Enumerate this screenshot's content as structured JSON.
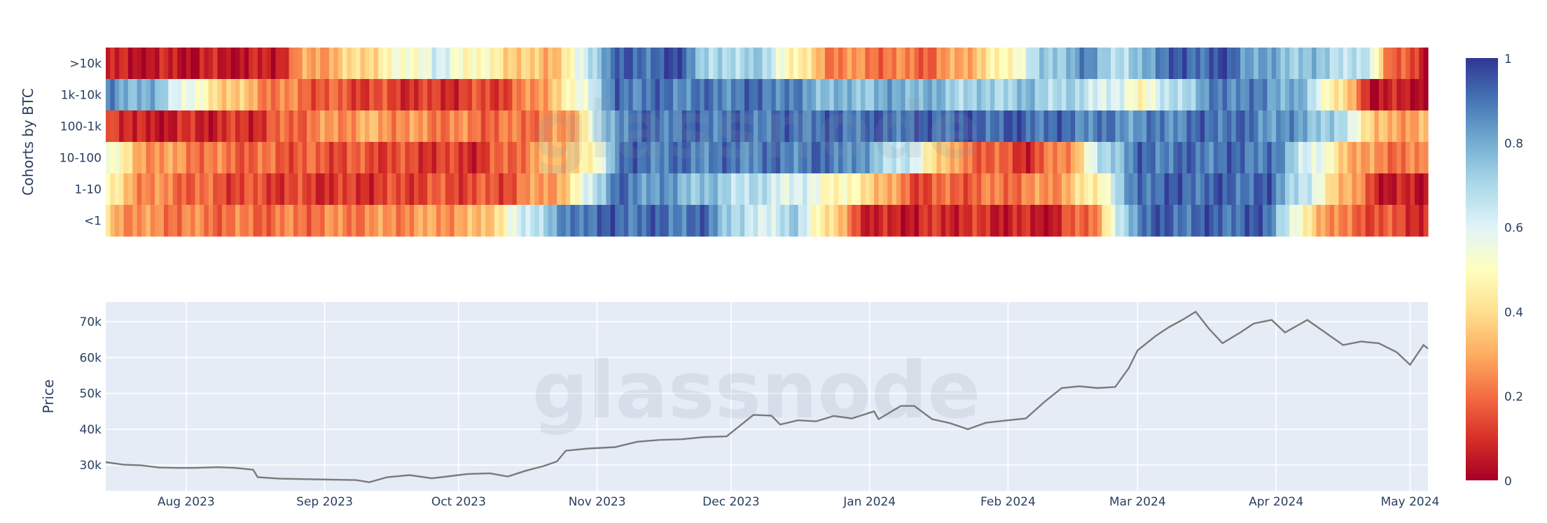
{
  "chart_data": [
    {
      "type": "heatmap",
      "ylabel": "Cohorts by BTC",
      "y_categories": [
        ">10k",
        "1k-10k",
        "100-1k",
        "10-100",
        "1-10",
        "<1"
      ],
      "x_range": [
        "2023-07-14",
        "2024-05-05"
      ],
      "colorscale": {
        "name": "RdYlBu",
        "min": 0,
        "max": 1,
        "ticks": [
          {
            "value": 0,
            "label": "0"
          },
          {
            "value": 0.2,
            "label": "0.2"
          },
          {
            "value": 0.4,
            "label": "0.4"
          },
          {
            "value": 0.6,
            "label": "0.6"
          },
          {
            "value": 0.8,
            "label": "0.8"
          },
          {
            "value": 1,
            "label": "1"
          }
        ],
        "stops": [
          "#a50026",
          "#d73027",
          "#f46d43",
          "#fdae61",
          "#fee090",
          "#ffffbf",
          "#e0f3f8",
          "#abd9e9",
          "#74add1",
          "#4575b4",
          "#313695"
        ]
      },
      "segments": [
        {
          "cohort": ">10k",
          "points": [
            [
              "2023-07-14",
              0.05
            ],
            [
              "2023-08-20",
              0.05
            ],
            [
              "2023-08-26",
              0.25
            ],
            [
              "2023-09-10",
              0.4
            ],
            [
              "2023-09-25",
              0.6
            ],
            [
              "2023-10-08",
              0.45
            ],
            [
              "2023-10-20",
              0.3
            ],
            [
              "2023-10-28",
              0.55
            ],
            [
              "2023-11-03",
              0.9
            ],
            [
              "2023-11-20",
              0.95
            ],
            [
              "2023-11-26",
              0.65
            ],
            [
              "2023-12-05",
              0.75
            ],
            [
              "2023-12-14",
              0.5
            ],
            [
              "2023-12-22",
              0.25
            ],
            [
              "2024-01-15",
              0.2
            ],
            [
              "2024-01-30",
              0.45
            ],
            [
              "2024-02-08",
              0.7
            ],
            [
              "2024-02-18",
              0.85
            ],
            [
              "2024-02-27",
              0.65
            ],
            [
              "2024-03-05",
              0.9
            ],
            [
              "2024-03-20",
              0.95
            ],
            [
              "2024-03-28",
              0.8
            ],
            [
              "2024-04-15",
              0.7
            ],
            [
              "2024-04-22",
              0.6
            ],
            [
              "2024-04-26",
              0.2
            ],
            [
              "2024-05-05",
              0.05
            ]
          ]
        },
        {
          "cohort": "1k-10k",
          "points": [
            [
              "2023-07-14",
              0.85
            ],
            [
              "2023-07-25",
              0.75
            ],
            [
              "2023-08-05",
              0.45
            ],
            [
              "2023-08-18",
              0.25
            ],
            [
              "2023-09-05",
              0.15
            ],
            [
              "2023-09-25",
              0.1
            ],
            [
              "2023-10-12",
              0.15
            ],
            [
              "2023-10-24",
              0.4
            ],
            [
              "2023-10-29",
              0.6
            ],
            [
              "2023-11-05",
              0.9
            ],
            [
              "2023-11-25",
              0.88
            ],
            [
              "2023-12-10",
              0.9
            ],
            [
              "2023-12-25",
              0.75
            ],
            [
              "2024-01-10",
              0.8
            ],
            [
              "2024-01-25",
              0.7
            ],
            [
              "2024-02-05",
              0.75
            ],
            [
              "2024-02-20",
              0.65
            ],
            [
              "2024-03-01",
              0.5
            ],
            [
              "2024-03-10",
              0.7
            ],
            [
              "2024-03-20",
              0.9
            ],
            [
              "2024-04-05",
              0.8
            ],
            [
              "2024-04-15",
              0.4
            ],
            [
              "2024-04-22",
              0.05
            ],
            [
              "2024-05-05",
              0.05
            ]
          ]
        },
        {
          "cohort": "100-1k",
          "points": [
            [
              "2023-07-14",
              0.2
            ],
            [
              "2023-07-20",
              0.05
            ],
            [
              "2023-08-15",
              0.1
            ],
            [
              "2023-08-25",
              0.2
            ],
            [
              "2023-09-10",
              0.3
            ],
            [
              "2023-09-20",
              0.25
            ],
            [
              "2023-10-10",
              0.2
            ],
            [
              "2023-10-25",
              0.25
            ],
            [
              "2023-10-31",
              0.6
            ],
            [
              "2023-11-06",
              0.9
            ],
            [
              "2023-12-10",
              0.9
            ],
            [
              "2024-01-15",
              0.92
            ],
            [
              "2024-02-01",
              0.93
            ],
            [
              "2024-03-01",
              0.85
            ],
            [
              "2024-03-20",
              0.92
            ],
            [
              "2024-04-08",
              0.8
            ],
            [
              "2024-04-18",
              0.6
            ],
            [
              "2024-04-23",
              0.3
            ],
            [
              "2024-05-05",
              0.3
            ]
          ]
        },
        {
          "cohort": "10-100",
          "points": [
            [
              "2023-07-14",
              0.6
            ],
            [
              "2023-07-20",
              0.3
            ],
            [
              "2023-08-10",
              0.2
            ],
            [
              "2023-09-10",
              0.15
            ],
            [
              "2023-10-05",
              0.1
            ],
            [
              "2023-10-20",
              0.3
            ],
            [
              "2023-10-31",
              0.45
            ],
            [
              "2023-11-05",
              0.9
            ],
            [
              "2023-12-05",
              0.88
            ],
            [
              "2023-12-25",
              0.9
            ],
            [
              "2024-01-10",
              0.6
            ],
            [
              "2024-01-20",
              0.25
            ],
            [
              "2024-02-05",
              0.1
            ],
            [
              "2024-02-15",
              0.3
            ],
            [
              "2024-02-22",
              0.7
            ],
            [
              "2024-03-01",
              0.9
            ],
            [
              "2024-03-30",
              0.9
            ],
            [
              "2024-04-10",
              0.55
            ],
            [
              "2024-04-20",
              0.25
            ],
            [
              "2024-05-05",
              0.2
            ]
          ]
        },
        {
          "cohort": "1-10",
          "points": [
            [
              "2023-07-14",
              0.45
            ],
            [
              "2023-07-22",
              0.25
            ],
            [
              "2023-08-10",
              0.15
            ],
            [
              "2023-09-05",
              0.1
            ],
            [
              "2023-09-25",
              0.15
            ],
            [
              "2023-10-10",
              0.15
            ],
            [
              "2023-10-25",
              0.35
            ],
            [
              "2023-10-31",
              0.7
            ],
            [
              "2023-11-05",
              0.9
            ],
            [
              "2023-12-01",
              0.7
            ],
            [
              "2023-12-15",
              0.6
            ],
            [
              "2024-01-01",
              0.4
            ],
            [
              "2024-01-10",
              0.15
            ],
            [
              "2024-01-25",
              0.2
            ],
            [
              "2024-02-10",
              0.25
            ],
            [
              "2024-02-20",
              0.45
            ],
            [
              "2024-03-01",
              0.92
            ],
            [
              "2024-03-30",
              0.92
            ],
            [
              "2024-04-08",
              0.6
            ],
            [
              "2024-04-15",
              0.35
            ],
            [
              "2024-04-25",
              0.05
            ],
            [
              "2024-05-05",
              0.05
            ]
          ]
        },
        {
          "cohort": "<1",
          "points": [
            [
              "2023-07-14",
              0.35
            ],
            [
              "2023-07-20",
              0.25
            ],
            [
              "2023-08-15",
              0.2
            ],
            [
              "2023-09-15",
              0.25
            ],
            [
              "2023-10-05",
              0.3
            ],
            [
              "2023-10-18",
              0.7
            ],
            [
              "2023-10-28",
              0.92
            ],
            [
              "2023-11-25",
              0.9
            ],
            [
              "2023-12-05",
              0.6
            ],
            [
              "2023-12-15",
              0.7
            ],
            [
              "2023-12-25",
              0.3
            ],
            [
              "2024-01-01",
              0.05
            ],
            [
              "2024-01-20",
              0.1
            ],
            [
              "2024-02-10",
              0.05
            ],
            [
              "2024-02-20",
              0.25
            ],
            [
              "2024-03-01",
              0.92
            ],
            [
              "2024-03-30",
              0.92
            ],
            [
              "2024-04-05",
              0.5
            ],
            [
              "2024-04-15",
              0.2
            ],
            [
              "2024-05-05",
              0.1
            ]
          ]
        }
      ]
    },
    {
      "type": "line",
      "ylabel": "Price",
      "x_ticks": [
        {
          "date": "2023-08-01",
          "label": "Aug 2023"
        },
        {
          "date": "2023-09-01",
          "label": "Sep 2023"
        },
        {
          "date": "2023-10-01",
          "label": "Oct 2023"
        },
        {
          "date": "2023-11-01",
          "label": "Nov 2023"
        },
        {
          "date": "2023-12-01",
          "label": "Dec 2023"
        },
        {
          "date": "2024-01-01",
          "label": "Jan 2024"
        },
        {
          "date": "2024-02-01",
          "label": "Feb 2024"
        },
        {
          "date": "2024-03-01",
          "label": "Mar 2024"
        },
        {
          "date": "2024-04-01",
          "label": "Apr 2024"
        },
        {
          "date": "2024-05-01",
          "label": "May 2024"
        }
      ],
      "y_ticks": [
        {
          "value": 30000,
          "label": "30k"
        },
        {
          "value": 40000,
          "label": "40k"
        },
        {
          "value": 50000,
          "label": "50k"
        },
        {
          "value": 60000,
          "label": "60k"
        },
        {
          "value": 70000,
          "label": "70k"
        }
      ],
      "xlim": [
        "2023-07-14",
        "2024-05-05"
      ],
      "ylim": [
        22800,
        75500
      ],
      "grid": true,
      "line_color": "#7a7a7a",
      "plot_bgcolor": "#e5ecf6",
      "series": [
        {
          "x": [
            "2023-07-14",
            "2023-07-18",
            "2023-07-22",
            "2023-07-26",
            "2023-07-30",
            "2023-08-03",
            "2023-08-08",
            "2023-08-12",
            "2023-08-16",
            "2023-08-17",
            "2023-08-22",
            "2023-08-26",
            "2023-08-30",
            "2023-09-03",
            "2023-09-08",
            "2023-09-11",
            "2023-09-15",
            "2023-09-20",
            "2023-09-25",
            "2023-09-29",
            "2023-10-03",
            "2023-10-08",
            "2023-10-12",
            "2023-10-16",
            "2023-10-20",
            "2023-10-23",
            "2023-10-25",
            "2023-10-30",
            "2023-11-05",
            "2023-11-10",
            "2023-11-15",
            "2023-11-20",
            "2023-11-25",
            "2023-11-30",
            "2023-12-04",
            "2023-12-06",
            "2023-12-10",
            "2023-12-12",
            "2023-12-16",
            "2023-12-20",
            "2023-12-24",
            "2023-12-28",
            "2024-01-02",
            "2024-01-03",
            "2024-01-08",
            "2024-01-11",
            "2024-01-15",
            "2024-01-19",
            "2024-01-23",
            "2024-01-27",
            "2024-02-01",
            "2024-02-05",
            "2024-02-09",
            "2024-02-13",
            "2024-02-17",
            "2024-02-21",
            "2024-02-25",
            "2024-02-28",
            "2024-03-01",
            "2024-03-05",
            "2024-03-08",
            "2024-03-11",
            "2024-03-14",
            "2024-03-17",
            "2024-03-20",
            "2024-03-24",
            "2024-03-27",
            "2024-03-31",
            "2024-04-03",
            "2024-04-08",
            "2024-04-12",
            "2024-04-16",
            "2024-04-20",
            "2024-04-24",
            "2024-04-28",
            "2024-05-01",
            "2024-05-04",
            "2024-05-05"
          ],
          "y": [
            30800,
            30100,
            29900,
            29300,
            29200,
            29200,
            29400,
            29200,
            28700,
            26600,
            26200,
            26100,
            26000,
            25900,
            25800,
            25200,
            26600,
            27200,
            26300,
            26900,
            27500,
            27700,
            26800,
            28400,
            29700,
            31000,
            34000,
            34600,
            35000,
            36500,
            37000,
            37200,
            37800,
            38000,
            42000,
            44000,
            43800,
            41300,
            42500,
            42200,
            43700,
            43000,
            45000,
            42800,
            46500,
            46500,
            42800,
            41700,
            40000,
            41800,
            42500,
            43000,
            47500,
            51500,
            52000,
            51500,
            51800,
            57000,
            62000,
            66000,
            68500,
            70500,
            72800,
            68000,
            64000,
            67000,
            69500,
            70500,
            67000,
            70500,
            67000,
            63500,
            64500,
            64000,
            61500,
            58000,
            63500,
            62500
          ]
        }
      ]
    },
    {
      "type": "watermark",
      "text": "glassnode"
    }
  ]
}
